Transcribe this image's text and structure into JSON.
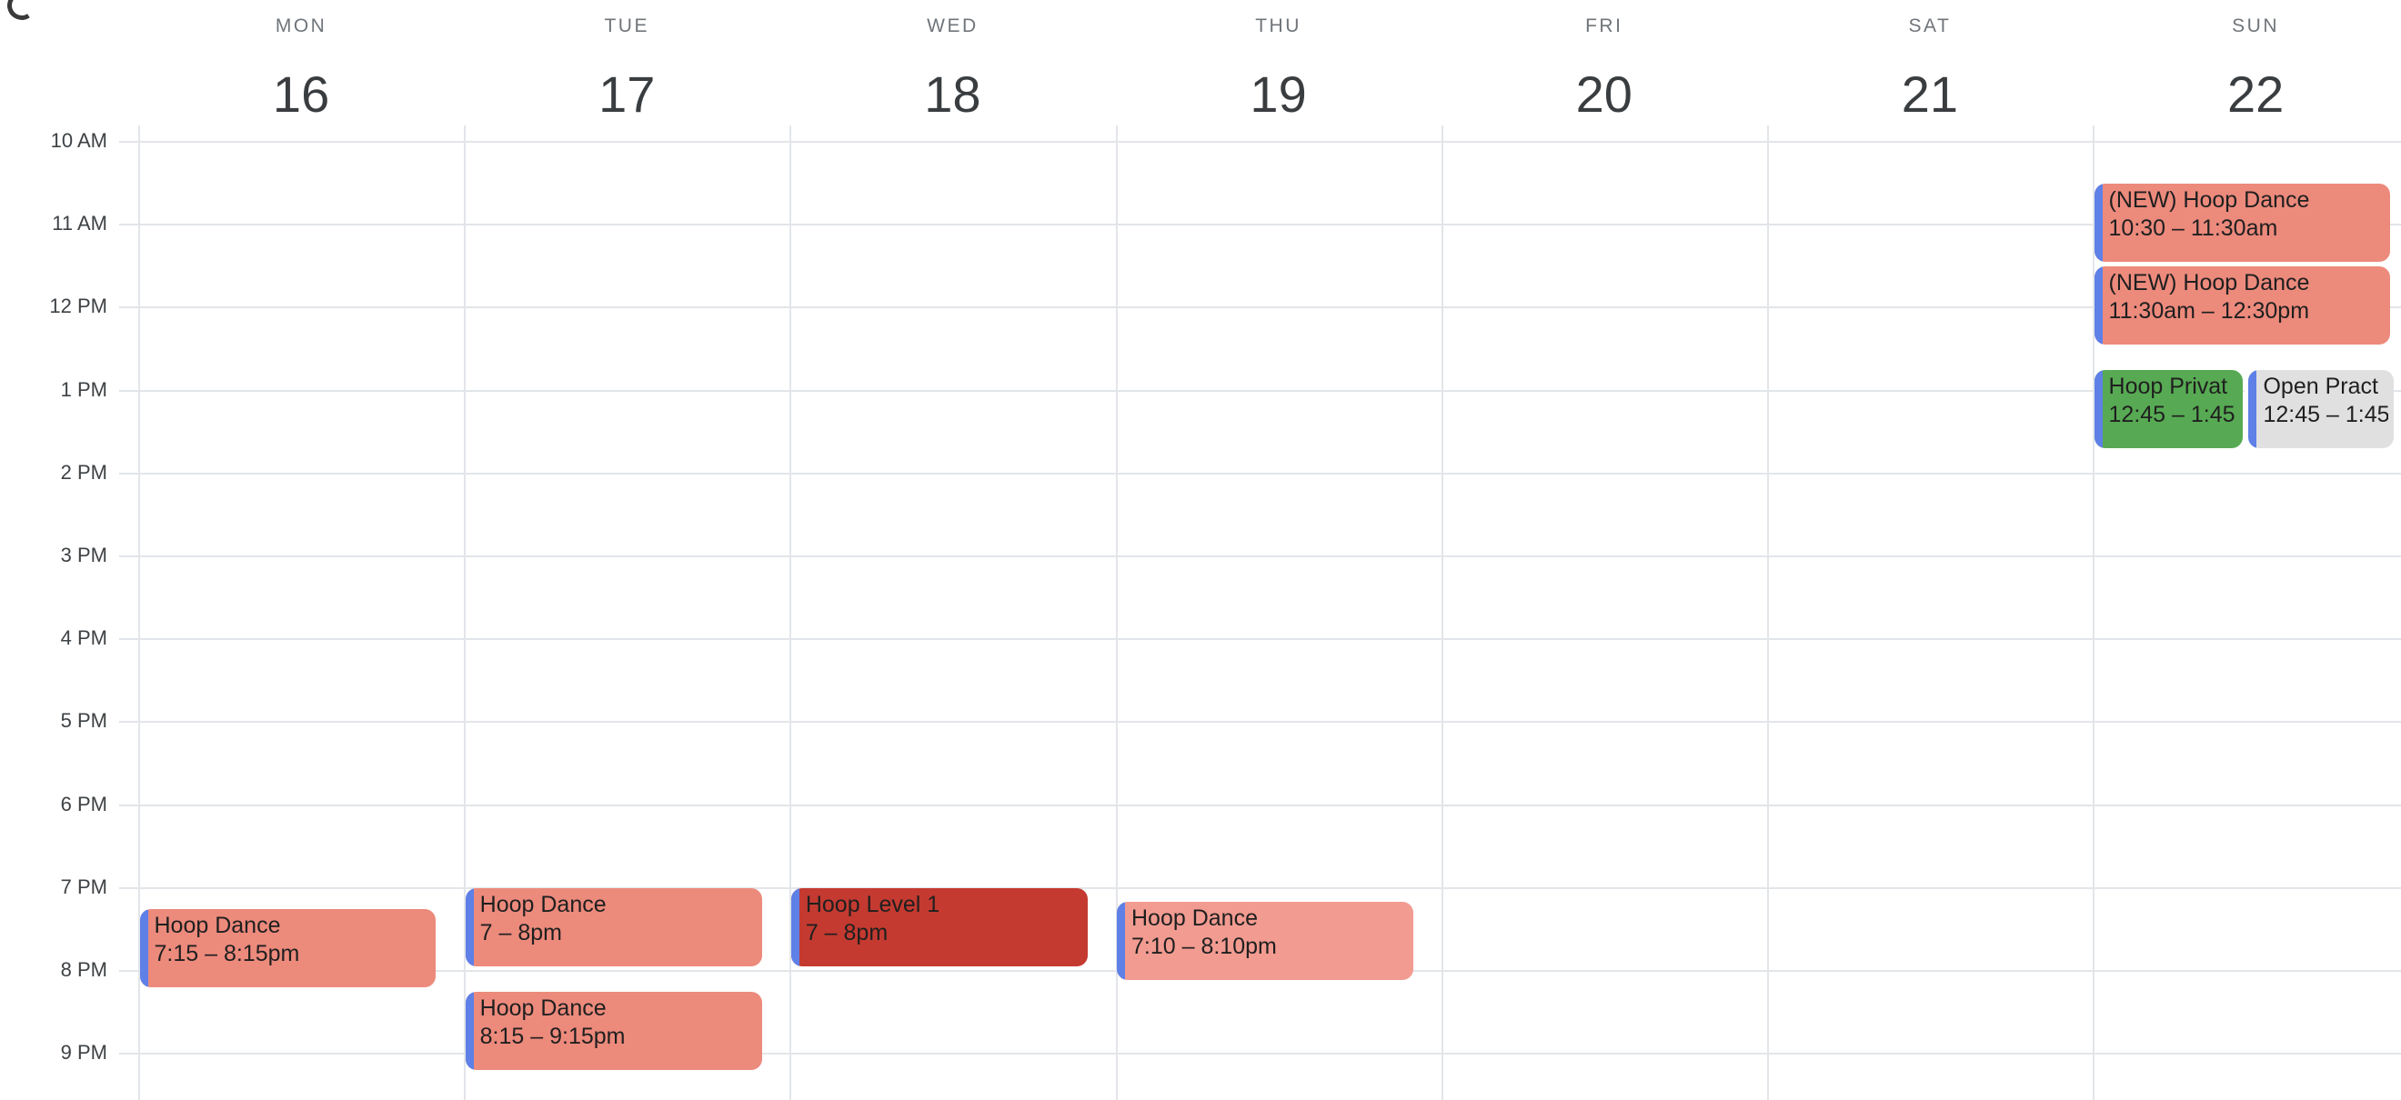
{
  "palette": {
    "event_salmon": "#EC8A7C",
    "event_salmon_light": "#F29B91",
    "event_red": "#C43A30",
    "event_green": "#57AA53",
    "event_gray": "#E0E0E0",
    "event_stripe": "#5E80E7",
    "grid_line": "#E2E5E9",
    "day_name_color": "#70757A",
    "day_number_color": "#3A3D40",
    "time_label_color": "#3E4245",
    "chip_text_color": "#1F1F1F",
    "corner_glyph_color": "#3A3A3A"
  },
  "time_labels": [
    "10 AM",
    "11 AM",
    "12 PM",
    "1 PM",
    "2 PM",
    "3 PM",
    "4 PM",
    "5 PM",
    "6 PM",
    "7 PM",
    "8 PM",
    "9 PM"
  ],
  "days": [
    {
      "name": "MON",
      "number": "16",
      "events": [
        {
          "title": "Hoop Dance",
          "time": "7:15 – 8:15pm",
          "start": 19.25,
          "end": 20.25,
          "color": "event_salmon"
        }
      ]
    },
    {
      "name": "TUE",
      "number": "17",
      "events": [
        {
          "title": "Hoop Dance",
          "time": "7 – 8pm",
          "start": 19.0,
          "end": 20.0,
          "color": "event_salmon"
        },
        {
          "title": "Hoop Dance",
          "time": "8:15 – 9:15pm",
          "start": 20.25,
          "end": 21.25,
          "color": "event_salmon"
        }
      ]
    },
    {
      "name": "WED",
      "number": "18",
      "events": [
        {
          "title": "Hoop Level 1",
          "time": "7 – 8pm",
          "start": 19.0,
          "end": 20.0,
          "color": "event_red"
        }
      ]
    },
    {
      "name": "THU",
      "number": "19",
      "events": [
        {
          "title": "Hoop Dance",
          "time": "7:10 – 8:10pm",
          "start": 19.1667,
          "end": 20.1667,
          "color": "event_salmon_light"
        }
      ]
    },
    {
      "name": "FRI",
      "number": "20",
      "events": []
    },
    {
      "name": "SAT",
      "number": "21",
      "events": []
    },
    {
      "name": "SUN",
      "number": "22",
      "events": [
        {
          "title": "(NEW) Hoop Dance",
          "time": "10:30 – 11:30am",
          "start": 10.5,
          "end": 11.5,
          "color": "event_salmon"
        },
        {
          "title": "(NEW) Hoop Dance",
          "time": "11:30am – 12:30pm",
          "start": 11.5,
          "end": 12.5,
          "color": "event_salmon"
        },
        {
          "title": "Hoop Privat",
          "time": "12:45 – 1:45",
          "start": 12.75,
          "end": 13.75,
          "color": "event_green",
          "slot": 0,
          "slots": 2
        },
        {
          "title": "Open Pract",
          "time": "12:45 – 1:45",
          "start": 12.75,
          "end": 13.75,
          "color": "event_gray",
          "slot": 1,
          "slots": 2
        }
      ]
    }
  ]
}
